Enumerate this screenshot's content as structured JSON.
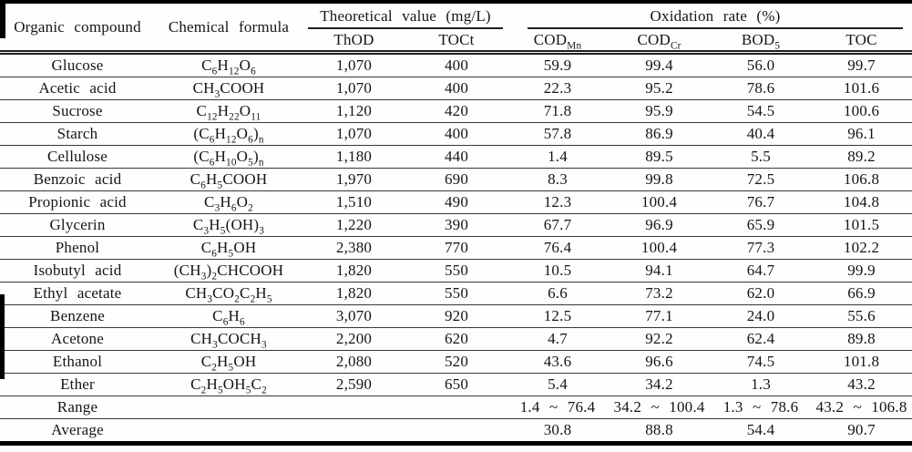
{
  "table": {
    "header": {
      "organic_compound": "Organic compound",
      "chemical_formula": "Chemical formula",
      "theoretical_group": "Theoretical value (mg/L)",
      "oxidation_group": "Oxidation rate (%)",
      "sub": [
        "ThOD",
        "TOCt",
        "COD_{Mn}",
        "COD_{Cr}",
        "BOD_{5}",
        "TOC"
      ]
    },
    "rows": [
      {
        "compound": "Glucose",
        "formula": "C_{6}H_{12}O_{6}",
        "thod": "1,070",
        "toct": "400",
        "codmn": "59.9",
        "codcr": "99.4",
        "bod": "56.0",
        "toc": "99.7"
      },
      {
        "compound": "Acetic acid",
        "formula": "CH_{3}COOH",
        "thod": "1,070",
        "toct": "400",
        "codmn": "22.3",
        "codcr": "95.2",
        "bod": "78.6",
        "toc": "101.6"
      },
      {
        "compound": "Sucrose",
        "formula": "C_{12}H_{22}O_{11}",
        "thod": "1,120",
        "toct": "420",
        "codmn": "71.8",
        "codcr": "95.9",
        "bod": "54.5",
        "toc": "100.6"
      },
      {
        "compound": "Starch",
        "formula": "(C_{6}H_{12}O_{6})_{n}",
        "thod": "1,070",
        "toct": "400",
        "codmn": "57.8",
        "codcr": "86.9",
        "bod": "40.4",
        "toc": "96.1"
      },
      {
        "compound": "Cellulose",
        "formula": "(C_{6}H_{10}O_{5})_{n}",
        "thod": "1,180",
        "toct": "440",
        "codmn": "1.4",
        "codcr": "89.5",
        "bod": "5.5",
        "toc": "89.2"
      },
      {
        "compound": "Benzoic acid",
        "formula": "C_{6}H_{5}COOH",
        "thod": "1,970",
        "toct": "690",
        "codmn": "8.3",
        "codcr": "99.8",
        "bod": "72.5",
        "toc": "106.8"
      },
      {
        "compound": "Propionic acid",
        "formula": "C_{3}H_{6}O_{2}",
        "thod": "1,510",
        "toct": "490",
        "codmn": "12.3",
        "codcr": "100.4",
        "bod": "76.7",
        "toc": "104.8"
      },
      {
        "compound": "Glycerin",
        "formula": "C_{3}H_{5}(OH)_{3}",
        "thod": "1,220",
        "toct": "390",
        "codmn": "67.7",
        "codcr": "96.9",
        "bod": "65.9",
        "toc": "101.5"
      },
      {
        "compound": "Phenol",
        "formula": "C_{6}H_{5}OH",
        "thod": "2,380",
        "toct": "770",
        "codmn": "76.4",
        "codcr": "100.4",
        "bod": "77.3",
        "toc": "102.2"
      },
      {
        "compound": "Isobutyl acid",
        "formula": "(CH_{3})_{2}CHCOOH",
        "thod": "1,820",
        "toct": "550",
        "codmn": "10.5",
        "codcr": "94.1",
        "bod": "64.7",
        "toc": "99.9"
      },
      {
        "compound": "Ethyl acetate",
        "formula": "CH_{3}CO_{2}C_{2}H_{5}",
        "thod": "1,820",
        "toct": "550",
        "codmn": "6.6",
        "codcr": "73.2",
        "bod": "62.0",
        "toc": "66.9"
      },
      {
        "compound": "Benzene",
        "formula": "C_{6}H_{6}",
        "thod": "3,070",
        "toct": "920",
        "codmn": "12.5",
        "codcr": "77.1",
        "bod": "24.0",
        "toc": "55.6"
      },
      {
        "compound": "Acetone",
        "formula": "CH_{3}COCH_{3}",
        "thod": "2,200",
        "toct": "620",
        "codmn": "4.7",
        "codcr": "92.2",
        "bod": "62.4",
        "toc": "89.8"
      },
      {
        "compound": "Ethanol",
        "formula": "C_{2}H_{5}OH",
        "thod": "2,080",
        "toct": "520",
        "codmn": "43.6",
        "codcr": "96.6",
        "bod": "74.5",
        "toc": "101.8"
      },
      {
        "compound": "Ether",
        "formula": "C_{2}H_{5}OH_{5}C_{2}",
        "thod": "2,590",
        "toct": "650",
        "codmn": "5.4",
        "codcr": "34.2",
        "bod": "1.3",
        "toc": "43.2"
      },
      {
        "compound": "Range",
        "formula": "",
        "thod": "",
        "toct": "",
        "codmn": "1.4 ~ 76.4",
        "codcr": "34.2 ~ 100.4",
        "bod": "1.3 ~ 78.6",
        "toc": "43.2 ~ 106.8"
      },
      {
        "compound": "Average",
        "formula": "",
        "thod": "",
        "toct": "",
        "codmn": "30.8",
        "codcr": "88.8",
        "bod": "54.4",
        "toc": "90.7"
      }
    ]
  }
}
